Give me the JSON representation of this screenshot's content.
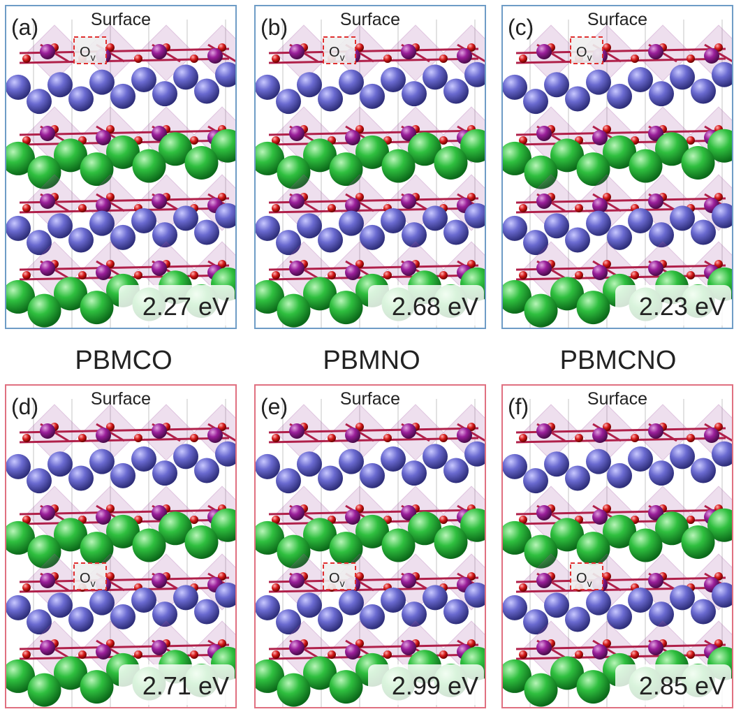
{
  "panels": [
    {
      "label": "(a)",
      "surface": "Surface",
      "vacancy": {
        "base": "O",
        "subscript": "v"
      },
      "energy": "2.27 eV"
    },
    {
      "label": "(b)",
      "surface": "Surface",
      "vacancy": {
        "base": "O",
        "subscript": "v"
      },
      "energy": "2.68 eV"
    },
    {
      "label": "(c)",
      "surface": "Surface",
      "vacancy": {
        "base": "O",
        "subscript": "v"
      },
      "energy": "2.23 eV"
    },
    {
      "label": "(d)",
      "surface": "Surface",
      "vacancy": {
        "base": "O",
        "subscript": "v"
      },
      "energy": "2.71 eV"
    },
    {
      "label": "(e)",
      "surface": "Surface",
      "vacancy": {
        "base": "O",
        "subscript": "v"
      },
      "energy": "2.99 eV"
    },
    {
      "label": "(f)",
      "surface": "Surface",
      "vacancy": {
        "base": "O",
        "subscript": "v"
      },
      "energy": "2.85 eV"
    }
  ],
  "columns": [
    "PBMCO",
    "PBMNO",
    "PBMCNO"
  ]
}
